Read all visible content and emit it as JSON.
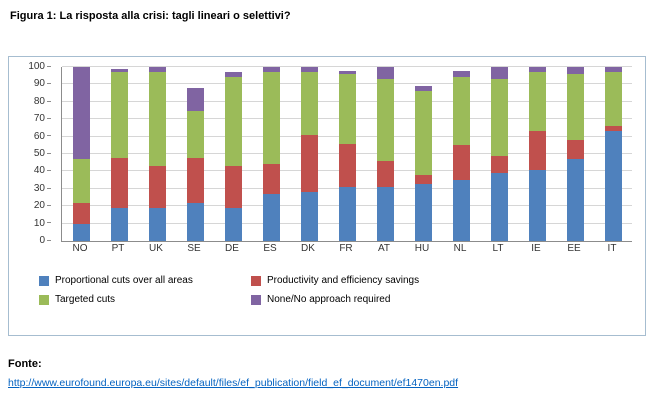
{
  "title": "Figura 1: La risposta alla crisi: tagli lineari o selettivi?",
  "source": {
    "label": "Fonte:",
    "url": "http://www.eurofound.europa.eu/sites/default/files/ef_publication/field_ef_document/ef1470en.pdf"
  },
  "chart_data": {
    "type": "bar",
    "stacked": true,
    "title": "",
    "xlabel": "",
    "ylabel": "",
    "ylim": [
      0,
      100
    ],
    "yticks": [
      0,
      10,
      20,
      30,
      40,
      50,
      60,
      70,
      80,
      90,
      100
    ],
    "grid": true,
    "legend_position": "bottom",
    "categories": [
      "NO",
      "PT",
      "UK",
      "SE",
      "DE",
      "ES",
      "DK",
      "FR",
      "AT",
      "HU",
      "NL",
      "LT",
      "IE",
      "EE",
      "IT"
    ],
    "series": [
      {
        "name": "Proportional cuts over all areas",
        "color": "#4f81bd",
        "values": [
          10,
          19,
          19,
          22,
          19,
          27,
          28,
          31,
          31,
          33,
          35,
          39,
          41,
          47,
          63
        ]
      },
      {
        "name": "Productivity and efficiency savings",
        "color": "#c0504d",
        "values": [
          12,
          29,
          24,
          26,
          24,
          17,
          33,
          25,
          15,
          5,
          20,
          10,
          22,
          11,
          3
        ]
      },
      {
        "name": "Targeted cuts",
        "color": "#9bbb59",
        "values": [
          25,
          49,
          54,
          27,
          51,
          53,
          36,
          40,
          47,
          48,
          39,
          44,
          34,
          38,
          31
        ]
      },
      {
        "name": "None/No approach required",
        "color": "#8064a2",
        "values": [
          53,
          2,
          3,
          13,
          3,
          3,
          3,
          2,
          7,
          3,
          4,
          7,
          3,
          4,
          3
        ]
      }
    ]
  }
}
